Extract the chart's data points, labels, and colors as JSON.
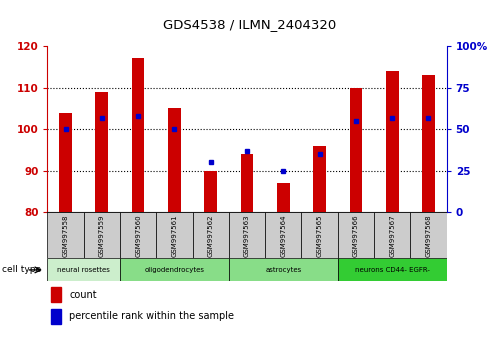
{
  "title": "GDS4538 / ILMN_2404320",
  "samples": [
    "GSM997558",
    "GSM997559",
    "GSM997560",
    "GSM997561",
    "GSM997562",
    "GSM997563",
    "GSM997564",
    "GSM997565",
    "GSM997566",
    "GSM997567",
    "GSM997568"
  ],
  "counts": [
    104,
    109,
    117,
    105,
    90,
    94,
    87,
    96,
    110,
    114,
    113
  ],
  "percentile_ranks": [
    50,
    57,
    58,
    50,
    30,
    37,
    25,
    35,
    55,
    57,
    57
  ],
  "ylim_left": [
    80,
    120
  ],
  "ylim_right": [
    0,
    100
  ],
  "yticks_left": [
    80,
    90,
    100,
    110,
    120
  ],
  "yticks_right": [
    0,
    25,
    50,
    75,
    100
  ],
  "grid_ticks": [
    90,
    100,
    110
  ],
  "cell_types": [
    {
      "label": "neural rosettes",
      "start": 0,
      "end": 2,
      "color": "#cceecc"
    },
    {
      "label": "oligodendrocytes",
      "start": 2,
      "end": 5,
      "color": "#88dd88"
    },
    {
      "label": "astrocytes",
      "start": 5,
      "end": 8,
      "color": "#88dd88"
    },
    {
      "label": "neurons CD44- EGFR-",
      "start": 8,
      "end": 11,
      "color": "#33cc33"
    }
  ],
  "bar_color": "#cc0000",
  "dot_color": "#0000cc",
  "bar_width": 0.35,
  "left_axis_color": "#cc0000",
  "right_axis_color": "#0000cc",
  "background_color": "#ffffff",
  "sample_box_color": "#cccccc",
  "legend_count_color": "#cc0000",
  "legend_pct_color": "#0000cc"
}
